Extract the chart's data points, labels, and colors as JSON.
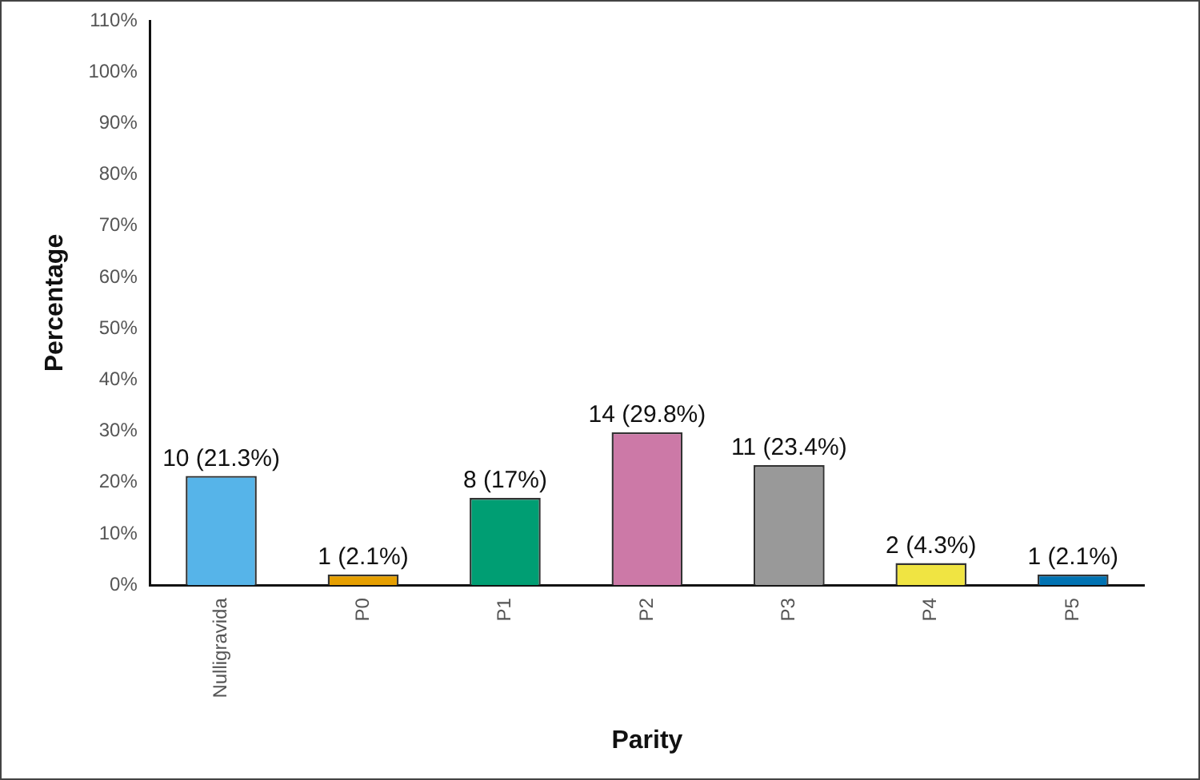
{
  "chart_data": {
    "type": "bar",
    "xlabel": "Parity",
    "ylabel": "Percentage",
    "categories": [
      "Nulligravida",
      "P0",
      "P1",
      "P2",
      "P3",
      "P4",
      "P5"
    ],
    "values": [
      21.3,
      2.1,
      17,
      29.8,
      23.4,
      4.3,
      2.1
    ],
    "colors": [
      "#56b4e9",
      "#e69f00",
      "#009e73",
      "#cc79a7",
      "#999999",
      "#f0e442",
      "#0072b2"
    ],
    "value_labels": [
      "10 (21.3%)",
      "1 (2.1%)",
      "8 (17%)",
      "14 (29.8%)",
      "11 (23.4%)",
      "2 (4.3%)",
      "1 (2.1%)"
    ],
    "ylim": [
      0,
      110
    ],
    "yticks": [
      {
        "value": 0,
        "label": "0%"
      },
      {
        "value": 10,
        "label": "10%"
      },
      {
        "value": 20,
        "label": "20%"
      },
      {
        "value": 30,
        "label": "30%"
      },
      {
        "value": 40,
        "label": "40%"
      },
      {
        "value": 50,
        "label": "50%"
      },
      {
        "value": 60,
        "label": "60%"
      },
      {
        "value": 70,
        "label": "70%"
      },
      {
        "value": 80,
        "label": "80%"
      },
      {
        "value": 90,
        "label": "90%"
      },
      {
        "value": 100,
        "label": "100%"
      },
      {
        "value": 110,
        "label": "110%"
      }
    ],
    "grid": false,
    "legend": false
  }
}
